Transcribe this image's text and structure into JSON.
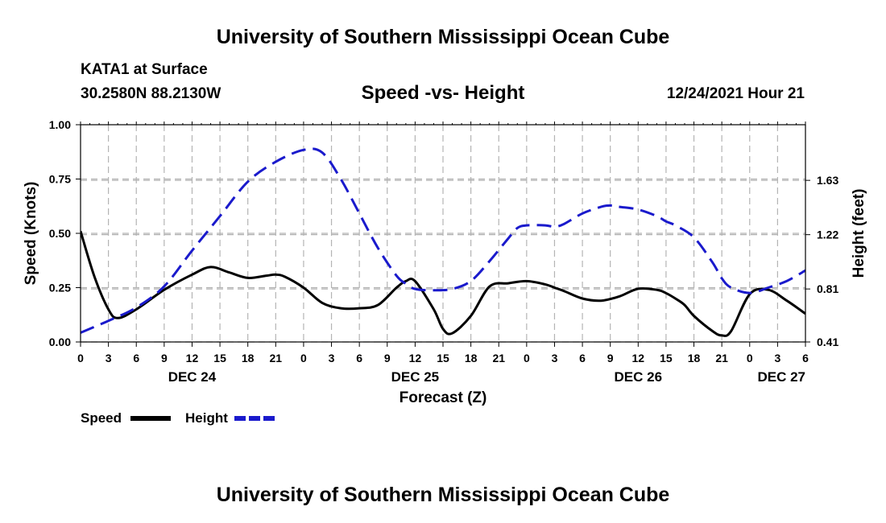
{
  "header": {
    "title": "University of Southern Mississippi Ocean Cube",
    "station": "KATA1 at Surface",
    "location": "30.2580N  88.2130W",
    "subtitle": "Speed -vs- Height",
    "datetime": "12/24/2021 Hour 21"
  },
  "legend": {
    "speed_label": "Speed",
    "height_label": "Height"
  },
  "footer": {
    "title": "University of Southern Mississippi Ocean Cube"
  },
  "colors": {
    "speed": "#000000",
    "height": "#1a1acc",
    "grid": "#b4b4b4"
  },
  "chart_data": {
    "type": "line",
    "title": "Speed -vs- Height",
    "xlabel": "Forecast (Z)",
    "ylabel": "Speed (Knots)",
    "y2label": "Height (feet)",
    "x_unit": "hours since DEC 24 00Z",
    "xlim": [
      0,
      78
    ],
    "ylim": [
      0,
      1.0
    ],
    "y2lim": [
      0.41,
      2.05
    ],
    "x_ticks": [
      {
        "x": 0,
        "label": "0"
      },
      {
        "x": 3,
        "label": "3"
      },
      {
        "x": 6,
        "label": "6"
      },
      {
        "x": 9,
        "label": "9"
      },
      {
        "x": 12,
        "label": "12"
      },
      {
        "x": 15,
        "label": "15"
      },
      {
        "x": 18,
        "label": "18"
      },
      {
        "x": 21,
        "label": "21"
      },
      {
        "x": 24,
        "label": "0"
      },
      {
        "x": 27,
        "label": "3"
      },
      {
        "x": 30,
        "label": "6"
      },
      {
        "x": 33,
        "label": "9"
      },
      {
        "x": 36,
        "label": "12"
      },
      {
        "x": 39,
        "label": "15"
      },
      {
        "x": 42,
        "label": "18"
      },
      {
        "x": 45,
        "label": "21"
      },
      {
        "x": 48,
        "label": "0"
      },
      {
        "x": 51,
        "label": "3"
      },
      {
        "x": 54,
        "label": "6"
      },
      {
        "x": 57,
        "label": "9"
      },
      {
        "x": 60,
        "label": "12"
      },
      {
        "x": 63,
        "label": "15"
      },
      {
        "x": 66,
        "label": "18"
      },
      {
        "x": 69,
        "label": "21"
      },
      {
        "x": 72,
        "label": "0"
      },
      {
        "x": 75,
        "label": "3"
      },
      {
        "x": 78,
        "label": "6"
      }
    ],
    "day_labels": [
      {
        "x": 12,
        "label": "DEC 24"
      },
      {
        "x": 36,
        "label": "DEC 25"
      },
      {
        "x": 60,
        "label": "DEC 26"
      },
      {
        "x": 78,
        "label": "DEC 27"
      }
    ],
    "y_ticks": [
      {
        "v": 0.0,
        "label": "0.00"
      },
      {
        "v": 0.25,
        "label": "0.25"
      },
      {
        "v": 0.5,
        "label": "0.50"
      },
      {
        "v": 0.75,
        "label": "0.75"
      },
      {
        "v": 1.0,
        "label": "1.00"
      }
    ],
    "y2_ticks": [
      {
        "v": 0.41,
        "label": "0.41"
      },
      {
        "v": 0.81,
        "label": "0.81"
      },
      {
        "v": 1.22,
        "label": "1.22"
      },
      {
        "v": 1.63,
        "label": "1.63"
      }
    ],
    "series": [
      {
        "name": "Speed",
        "axis": "left",
        "style": "solid",
        "x": [
          0,
          1.5,
          3,
          4,
          6,
          9,
          12,
          14,
          16,
          18,
          20,
          21,
          22,
          24,
          26,
          28,
          30,
          32,
          34,
          35,
          36,
          38,
          39,
          40,
          42,
          44,
          46,
          48,
          50,
          51,
          52,
          54,
          56,
          58,
          60,
          62,
          63,
          64,
          65,
          66,
          68,
          69,
          70,
          72,
          74,
          76,
          78
        ],
        "y": [
          0.51,
          0.3,
          0.15,
          0.11,
          0.15,
          0.24,
          0.31,
          0.345,
          0.32,
          0.295,
          0.305,
          0.31,
          0.3,
          0.25,
          0.18,
          0.155,
          0.155,
          0.17,
          0.25,
          0.28,
          0.28,
          0.15,
          0.06,
          0.04,
          0.12,
          0.255,
          0.27,
          0.28,
          0.265,
          0.25,
          0.235,
          0.2,
          0.19,
          0.21,
          0.245,
          0.24,
          0.225,
          0.2,
          0.17,
          0.12,
          0.05,
          0.03,
          0.05,
          0.22,
          0.24,
          0.19,
          0.13
        ]
      },
      {
        "name": "Height",
        "axis": "right",
        "style": "dashed",
        "x": [
          0,
          3,
          6,
          9,
          12,
          15,
          18,
          21,
          24,
          26,
          28,
          30,
          32,
          34,
          35,
          36,
          38,
          40,
          42,
          44,
          46,
          47,
          48,
          50,
          51,
          52,
          54,
          56,
          57,
          58,
          60,
          62,
          63,
          64,
          66,
          68,
          69,
          70,
          72,
          74,
          76,
          78
        ],
        "y": [
          0.48,
          0.57,
          0.67,
          0.83,
          1.1,
          1.36,
          1.62,
          1.77,
          1.86,
          1.84,
          1.64,
          1.38,
          1.12,
          0.91,
          0.85,
          0.81,
          0.8,
          0.81,
          0.87,
          1.02,
          1.19,
          1.27,
          1.29,
          1.29,
          1.28,
          1.3,
          1.38,
          1.43,
          1.44,
          1.43,
          1.41,
          1.36,
          1.32,
          1.29,
          1.2,
          1.01,
          0.89,
          0.82,
          0.78,
          0.82,
          0.87,
          0.95
        ]
      }
    ]
  }
}
